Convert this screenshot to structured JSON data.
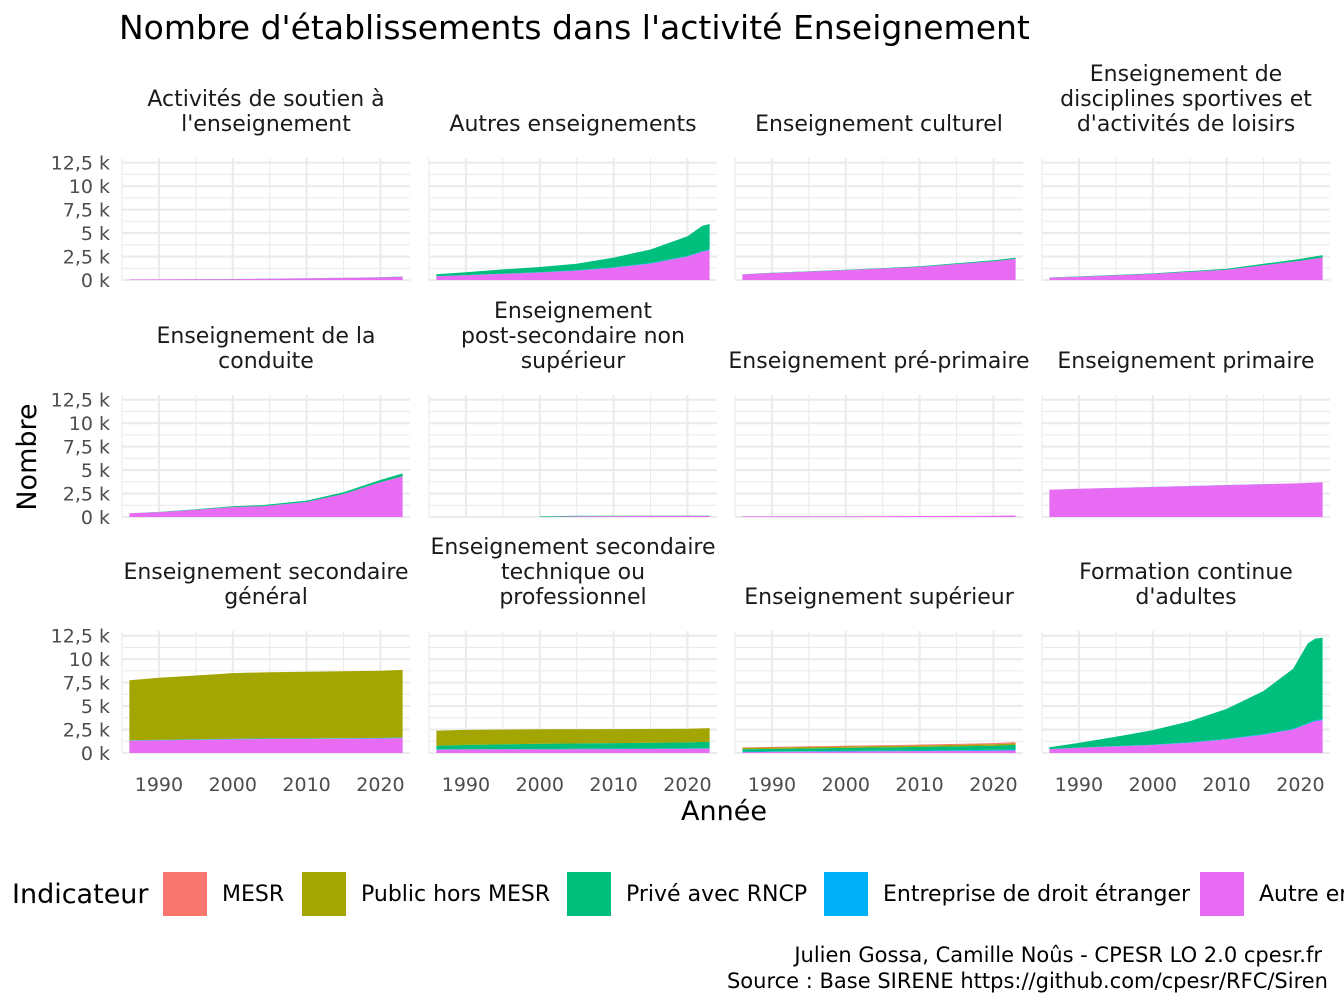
{
  "chart_data": {
    "type": "area",
    "stacked": true,
    "title": "Nombre d'établissements dans l'activité Enseignement",
    "xlabel": "Année",
    "ylabel": "Nombre",
    "xlim": [
      1985,
      2024
    ],
    "ylim": [
      0,
      13000
    ],
    "x_ticks": [
      1990,
      2000,
      2010,
      2020
    ],
    "y_ticks": [
      0,
      2500,
      5000,
      7500,
      10000,
      12500
    ],
    "y_tick_labels": [
      "0 k",
      "2,5 k",
      "5 k",
      "7,5 k",
      "10 k",
      "12,5 k"
    ],
    "grid": true,
    "facets_layout": "4 columns x 3 rows",
    "legend": {
      "title": "Indicateur",
      "position": "bottom",
      "entries": [
        {
          "name": "MESR",
          "color": "#F8766D"
        },
        {
          "name": "Public hors MESR",
          "color": "#A3A500"
        },
        {
          "name": "Privé avec RNCP",
          "color": "#00BF7D"
        },
        {
          "name": "Entreprise de droit étranger",
          "color": "#00B0F6"
        },
        {
          "name": "Autre en",
          "color": "#E76BF3"
        }
      ]
    },
    "stack_order_bottom_to_top": [
      "Autre en",
      "Entreprise de droit étranger",
      "Privé avec RNCP",
      "Public hors MESR",
      "MESR"
    ],
    "caption": [
      "Julien Gossa, Camille Noûs - CPESR LO 2.0 cpesr.fr",
      "Source : Base SIRENE https://github.com/cpesr/RFC/Siren"
    ],
    "facets": [
      {
        "title": "Activités de soutien à l'enseignement",
        "x": [
          1986,
          1990,
          2000,
          2010,
          2020,
          2023
        ],
        "series": [
          {
            "name": "Autre en",
            "values": [
              50,
              60,
              100,
              170,
              280,
              350
            ]
          },
          {
            "name": "Privé avec RNCP",
            "values": [
              5,
              5,
              5,
              10,
              15,
              20
            ]
          }
        ]
      },
      {
        "title": "Autres enseignements",
        "x": [
          1986,
          1990,
          1995,
          2000,
          2005,
          2010,
          2015,
          2020,
          2022,
          2023
        ],
        "series": [
          {
            "name": "Autre en",
            "values": [
              400,
              500,
              650,
              800,
              1000,
              1300,
              1750,
              2500,
              3000,
              3200
            ]
          },
          {
            "name": "Entreprise de droit étranger",
            "values": [
              20,
              20,
              25,
              30,
              35,
              40,
              50,
              60,
              70,
              70
            ]
          },
          {
            "name": "Privé avec RNCP",
            "values": [
              200,
              300,
              450,
              550,
              700,
              1050,
              1450,
              2100,
              2700,
              2700
            ]
          }
        ]
      },
      {
        "title": "Enseignement culturel",
        "x": [
          1986,
          1990,
          2000,
          2010,
          2020,
          2023
        ],
        "series": [
          {
            "name": "Autre en",
            "values": [
              600,
              750,
              1050,
              1400,
              2000,
              2250
            ]
          },
          {
            "name": "Privé avec RNCP",
            "values": [
              20,
              30,
              40,
              60,
              100,
              120
            ]
          }
        ]
      },
      {
        "title": "Enseignement de disciplines sportives et d'activités de loisirs",
        "x": [
          1986,
          1990,
          2000,
          2010,
          2020,
          2023
        ],
        "series": [
          {
            "name": "Autre en",
            "values": [
              250,
              350,
              650,
              1100,
              2050,
              2400
            ]
          },
          {
            "name": "Privé avec RNCP",
            "values": [
              20,
              30,
              50,
              100,
              200,
              250
            ]
          }
        ]
      },
      {
        "title": "Enseignement de la conduite",
        "x": [
          1986,
          1990,
          1995,
          2000,
          2004,
          2010,
          2015,
          2020,
          2023
        ],
        "series": [
          {
            "name": "Autre en",
            "values": [
              400,
              520,
              780,
              1050,
              1150,
              1600,
              2450,
              3700,
              4350
            ]
          },
          {
            "name": "Privé avec RNCP",
            "values": [
              10,
              20,
              50,
              100,
              120,
              150,
              180,
              250,
              300
            ]
          }
        ]
      },
      {
        "title": "Enseignement post-secondaire non supérieur",
        "x": [
          2000,
          2005,
          2010,
          2020,
          2023
        ],
        "series": [
          {
            "name": "Autre en",
            "values": [
              0,
              90,
              100,
              120,
              120
            ]
          },
          {
            "name": "Privé avec RNCP",
            "values": [
              60,
              40,
              30,
              30,
              30
            ]
          }
        ]
      },
      {
        "title": "Enseignement pré-primaire",
        "x": [
          1986,
          1990,
          2000,
          2010,
          2020,
          2023
        ],
        "series": [
          {
            "name": "Autre en",
            "values": [
              60,
              70,
              90,
              110,
              140,
              160
            ]
          }
        ]
      },
      {
        "title": "Enseignement primaire",
        "x": [
          1986,
          1990,
          2000,
          2010,
          2020,
          2023
        ],
        "series": [
          {
            "name": "Autre en",
            "values": [
              2900,
              3000,
              3200,
              3400,
              3600,
              3700
            ]
          },
          {
            "name": "Entreprise de droit étranger",
            "values": [
              5,
              5,
              5,
              5,
              5,
              5
            ]
          }
        ]
      },
      {
        "title": "Enseignement secondaire général",
        "x": [
          1986,
          1990,
          1995,
          2000,
          2005,
          2010,
          2020,
          2023
        ],
        "series": [
          {
            "name": "Autre en",
            "values": [
              1300,
              1350,
              1400,
              1450,
              1500,
              1500,
              1550,
              1600
            ]
          },
          {
            "name": "Entreprise de droit étranger",
            "values": [
              40,
              40,
              40,
              40,
              40,
              40,
              40,
              40
            ]
          },
          {
            "name": "Privé avec RNCP",
            "values": [
              20,
              20,
              20,
              20,
              20,
              20,
              20,
              20
            ]
          },
          {
            "name": "Public hors MESR",
            "values": [
              6400,
              6600,
              6800,
              7000,
              7050,
              7100,
              7150,
              7200
            ]
          }
        ]
      },
      {
        "title": "Enseignement secondaire technique ou professionnel",
        "x": [
          1986,
          1990,
          2000,
          2010,
          2020,
          2023
        ],
        "series": [
          {
            "name": "Autre en",
            "values": [
              350,
              380,
              400,
              420,
              450,
              470
            ]
          },
          {
            "name": "Entreprise de droit étranger",
            "values": [
              30,
              30,
              30,
              30,
              30,
              30
            ]
          },
          {
            "name": "Privé avec RNCP",
            "values": [
              400,
              450,
              550,
              600,
              650,
              700
            ]
          },
          {
            "name": "Public hors MESR",
            "values": [
              1600,
              1600,
              1550,
              1500,
              1450,
              1450
            ]
          }
        ]
      },
      {
        "title": "Enseignement supérieur",
        "x": [
          1986,
          1990,
          2000,
          2010,
          2020,
          2023
        ],
        "series": [
          {
            "name": "Autre en",
            "values": [
              100,
              120,
              160,
              200,
              250,
              280
            ]
          },
          {
            "name": "Entreprise de droit étranger",
            "values": [
              50,
              50,
              60,
              70,
              80,
              90
            ]
          },
          {
            "name": "Privé avec RNCP",
            "values": [
              250,
              270,
              320,
              380,
              450,
              500
            ]
          },
          {
            "name": "Public hors MESR",
            "values": [
              150,
              150,
              150,
              150,
              150,
              150
            ]
          },
          {
            "name": "MESR",
            "values": [
              50,
              60,
              80,
              100,
              130,
              140
            ]
          }
        ]
      },
      {
        "title": "Formation continue d'adultes",
        "x": [
          1986,
          1990,
          1995,
          2000,
          2005,
          2010,
          2015,
          2019,
          2021,
          2022,
          2023
        ],
        "series": [
          {
            "name": "Autre en",
            "values": [
              400,
              550,
              700,
              850,
              1100,
              1450,
              1950,
              2500,
              3100,
              3400,
              3500
            ]
          },
          {
            "name": "Entreprise de droit étranger",
            "values": [
              20,
              25,
              30,
              35,
              40,
              50,
              60,
              70,
              80,
              85,
              90
            ]
          },
          {
            "name": "Privé avec RNCP",
            "values": [
              200,
              500,
              1000,
              1550,
              2250,
              3200,
              4600,
              6400,
              8500,
              8700,
              8700
            ]
          }
        ]
      }
    ]
  }
}
